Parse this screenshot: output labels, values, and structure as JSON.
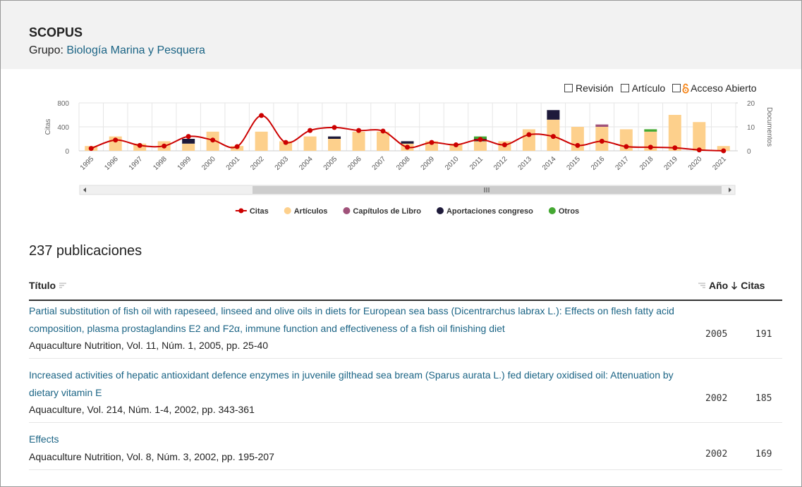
{
  "header": {
    "title": "SCOPUS",
    "group_label": "Grupo:",
    "group": "Biología Marina y Pesquera"
  },
  "filters": [
    "Revisión",
    "Artículo",
    "Acceso Abierto"
  ],
  "chart_data": {
    "type": "bar",
    "stacked": true,
    "categories": [
      "1995",
      "1996",
      "1997",
      "1998",
      "1999",
      "2000",
      "2001",
      "2002",
      "2003",
      "2004",
      "2005",
      "2006",
      "2007",
      "2008",
      "2009",
      "2010",
      "2011",
      "2012",
      "2013",
      "2014",
      "2015",
      "2016",
      "2017",
      "2018",
      "2019",
      "2020",
      "2021"
    ],
    "ylabel": "Citas",
    "y2label": "Documentos",
    "ylim": [
      0,
      800
    ],
    "yticks": [
      0,
      400,
      800
    ],
    "y2lim": [
      0,
      20
    ],
    "y2ticks": [
      0,
      10,
      20
    ],
    "grid": true,
    "series": [
      {
        "name": "Citas",
        "type": "line",
        "color": "#cc0000",
        "values": [
          40,
          180,
          90,
          80,
          240,
          180,
          70,
          590,
          140,
          340,
          390,
          340,
          330,
          60,
          140,
          100,
          190,
          100,
          270,
          240,
          90,
          160,
          70,
          60,
          50,
          15,
          0
        ]
      },
      {
        "name": "Artículos",
        "axis": "y2",
        "color": "#fdd08c",
        "values": [
          2,
          6,
          3,
          4,
          3,
          8,
          2,
          8,
          4,
          6,
          5,
          8,
          8,
          3,
          4,
          3,
          4,
          4,
          9,
          13,
          10,
          10,
          9,
          8,
          15,
          12,
          2
        ]
      },
      {
        "name": "Capítulos de Libro",
        "axis": "y2",
        "color": "#a0527a",
        "values": [
          0,
          0,
          0,
          0,
          0,
          0,
          0,
          0,
          0,
          0,
          0,
          0,
          0,
          0,
          0,
          0,
          0,
          0,
          0,
          0,
          0,
          1,
          0,
          0,
          0,
          0,
          0
        ]
      },
      {
        "name": "Aportaciones congreso",
        "axis": "y2",
        "color": "#1e1a3a",
        "values": [
          0,
          0,
          0,
          0,
          2,
          0,
          0,
          0,
          0,
          0,
          1,
          0,
          0,
          1,
          0,
          0,
          1,
          0,
          0,
          4,
          0,
          0,
          0,
          0,
          0,
          0,
          0
        ]
      },
      {
        "name": "Otros",
        "axis": "y2",
        "color": "#44a832",
        "values": [
          0,
          0,
          0,
          0,
          0,
          0,
          0,
          0,
          0,
          0,
          0,
          0,
          0,
          0,
          0,
          0,
          1,
          0,
          0,
          0,
          0,
          0,
          0,
          1,
          0,
          0,
          0
        ]
      }
    ]
  },
  "publications": {
    "count_label": "237 publicaciones",
    "columns": [
      "Título",
      "Año",
      "Citas"
    ],
    "rows": [
      {
        "title": "Partial substitution of fish oil with rapeseed, linseed and olive oils in diets for European sea bass (Dicentrarchus labrax L.): Effects on flesh fatty acid composition, plasma prostaglandins E2 and F2α, immune function and effectiveness of a fish oil finishing diet",
        "source": "Aquaculture Nutrition, Vol. 11, Núm. 1, 2005, pp. 25-40",
        "year": "2005",
        "citations": 191
      },
      {
        "title": "Increased activities of hepatic antioxidant defence enzymes in juvenile gilthead sea bream (Sparus aurata L.) fed dietary oxidised oil: Attenuation by dietary vitamin E",
        "source": "Aquaculture, Vol. 214, Núm. 1-4, 2002, pp. 343-361",
        "year": "2002",
        "citations": 185
      },
      {
        "title": "Effects",
        "source": "Aquaculture Nutrition, Vol. 8, Núm. 3, 2002, pp. 195-207",
        "year": "2002",
        "citations": 169
      }
    ]
  }
}
